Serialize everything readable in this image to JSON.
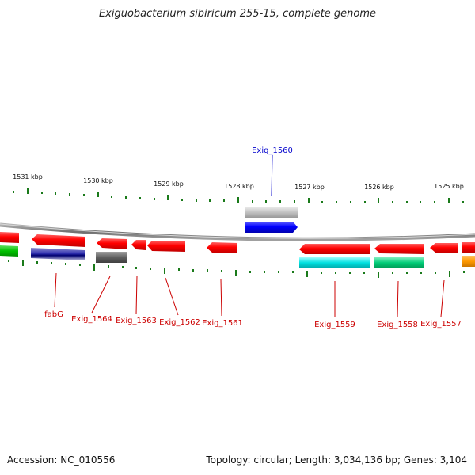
{
  "title": "Exiguobacterium sibiricum 255-15, complete genome",
  "footer": {
    "accession": "Accession: NC_010556",
    "summary": "Topology: circular; Length: 3,034,136 bp; Genes: 3,104"
  },
  "colors": {
    "backbone": "#808080",
    "forward_gene": "#ff0000",
    "tick": "#1a7a1a",
    "label_forward": "#cc0000",
    "label_reverse": "#0000cc"
  },
  "scale": {
    "unit": "kbp",
    "labels": [
      "1531 kbp",
      "1530 kbp",
      "1529 kbp",
      "1528 kbp",
      "1527 kbp",
      "1526 kbp",
      "1525 kbp"
    ]
  },
  "gene_labels": [
    {
      "name": "fabG",
      "strand": "forward"
    },
    {
      "name": "Exig_1564",
      "strand": "forward"
    },
    {
      "name": "Exig_1563",
      "strand": "forward"
    },
    {
      "name": "Exig_1562",
      "strand": "forward"
    },
    {
      "name": "Exig_1561",
      "strand": "forward"
    },
    {
      "name": "Exig_1560",
      "strand": "reverse"
    },
    {
      "name": "Exig_1559",
      "strand": "forward"
    },
    {
      "name": "Exig_1558",
      "strand": "forward"
    },
    {
      "name": "Exig_1557",
      "strand": "forward"
    }
  ],
  "annotation_colors": [
    "#00c000",
    "#3030b0",
    "#606060",
    "#c0c0c0",
    "#0000ff",
    "#00e0e0",
    "#00cc77",
    "#ff9900"
  ]
}
